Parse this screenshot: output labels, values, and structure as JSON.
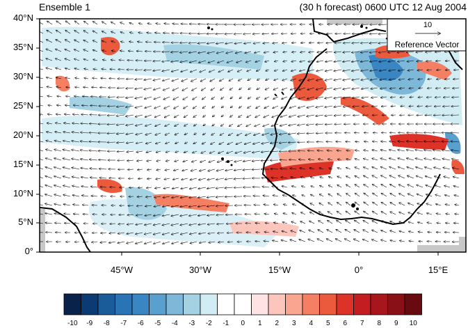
{
  "header": {
    "left_title": "Ensemble 1",
    "right_title": "(30 h forecast) 0600 UTC 12 Aug 2004"
  },
  "map": {
    "lat_ticks": [
      "40°N",
      "35°N",
      "30°N",
      "25°N",
      "20°N",
      "15°N",
      "10°N",
      "5°N",
      "0°"
    ],
    "lon_ticks": [
      "45°W",
      "30°W",
      "15°W",
      "0°",
      "15°E"
    ],
    "reference_vector": {
      "value": "10",
      "label": "Reference Vector"
    },
    "colors": {
      "land_outline": "#000000",
      "missing": "#c8c8c8",
      "vector": "#000000"
    }
  },
  "colorbar": {
    "labels": [
      "-10",
      "-9",
      "-8",
      "-7",
      "-6",
      "-5",
      "-4",
      "-3",
      "-2",
      "-1",
      "0",
      "1",
      "2",
      "3",
      "4",
      "5",
      "6",
      "7",
      "8",
      "9",
      "10"
    ],
    "colors": [
      "#08224a",
      "#0c3a73",
      "#1a5b9a",
      "#2a74b5",
      "#3a86c3",
      "#5aa0cf",
      "#7db8d8",
      "#a4d2e2",
      "#d2ecf4",
      "#ffffff",
      "#ffffff",
      "#fde3e3",
      "#fcc6bd",
      "#f9a58f",
      "#f47f63",
      "#ec5a3e",
      "#dc3228",
      "#c41d21",
      "#a8161d",
      "#8a1018",
      "#680a10"
    ]
  }
}
